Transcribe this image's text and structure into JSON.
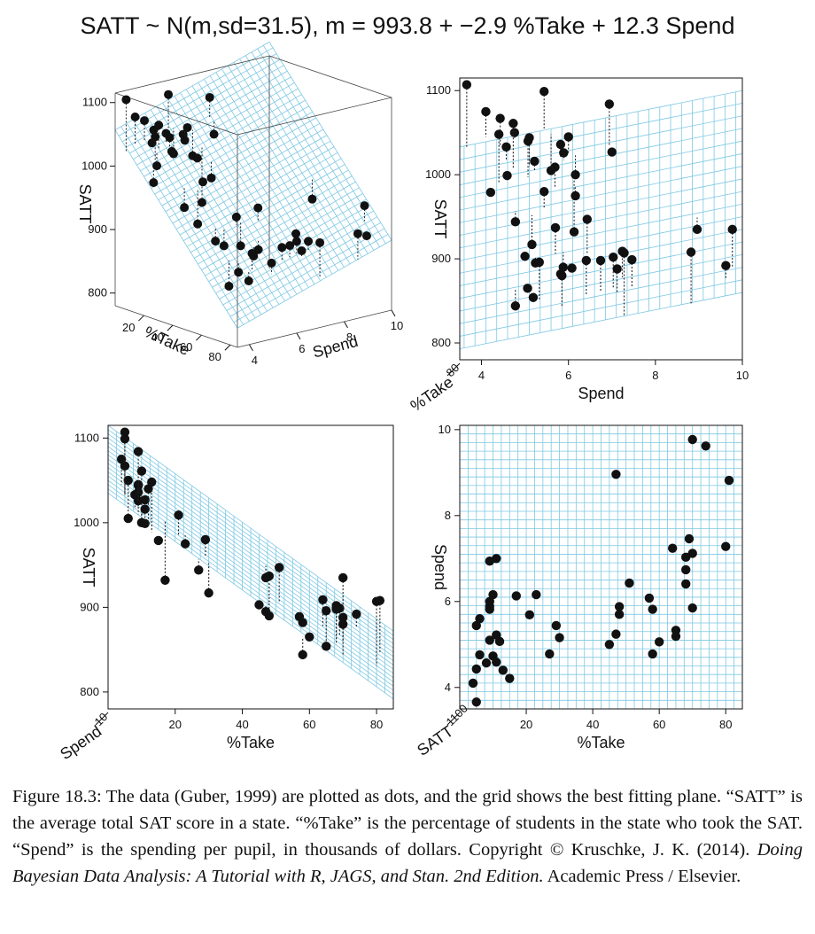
{
  "title": "SATT ~ N(m,sd=31.5), m = 993.8 + −2.9 %Take + 12.3 Spend",
  "colors": {
    "grid": "#7ec8e3",
    "points": "#111111",
    "residual": "#222222"
  },
  "chart_data": [
    {
      "type": "scatter",
      "panel": "3d-perspective",
      "axes": {
        "x": "%Take",
        "y": "Spend",
        "z": "SATT"
      },
      "x_ticks": [
        "20",
        "40",
        "60",
        "80"
      ],
      "y_ticks": [
        "4",
        "6",
        "8",
        "10"
      ],
      "z_ticks": [
        "800",
        "900",
        "1000",
        "1100"
      ],
      "surface": "regression plane (grid)"
    },
    {
      "type": "scatter",
      "panel": "SATT vs Spend",
      "xlabel": "Spend",
      "ylabel": "SATT",
      "corner_label": "%Take",
      "xlim": [
        3.5,
        10
      ],
      "ylim": [
        780,
        1115
      ],
      "x_ticks": [
        "4",
        "6",
        "8",
        "10"
      ],
      "y_ticks": [
        "800",
        "900",
        "1000",
        "1100"
      ],
      "corner_ticks": "80",
      "plane": {
        "intercept_at_left": 1033,
        "intercept_at_right": 893,
        "thickness": 140
      }
    },
    {
      "type": "scatter",
      "panel": "SATT vs %Take",
      "xlabel": "%Take",
      "ylabel": "SATT",
      "corner_label": "Spend",
      "xlim": [
        0,
        85
      ],
      "ylim": [
        780,
        1115
      ],
      "x_ticks": [
        "20",
        "40",
        "60",
        "80"
      ],
      "y_ticks": [
        "800",
        "900",
        "1000",
        "1100"
      ],
      "corner_ticks": "10"
    },
    {
      "type": "scatter",
      "panel": "Spend vs %Take",
      "xlabel": "%Take",
      "ylabel": "Spend",
      "corner_label": "SATT",
      "xlim": [
        0,
        85
      ],
      "ylim": [
        3.5,
        10.1
      ],
      "x_ticks": [
        "20",
        "40",
        "60",
        "80"
      ],
      "y_ticks": [
        "4",
        "6",
        "8",
        "10"
      ],
      "corner_ticks": "1100"
    }
  ],
  "points": [
    {
      "take": 4,
      "spend": 4.1,
      "satt": 1075,
      "fit": 1045
    },
    {
      "take": 5,
      "spend": 3.66,
      "satt": 1107,
      "fit": 1033
    },
    {
      "take": 5,
      "spend": 5.44,
      "satt": 1099,
      "fit": 1055
    },
    {
      "take": 6,
      "spend": 4.76,
      "satt": 1050,
      "fit": 1043
    },
    {
      "take": 5,
      "spend": 4.43,
      "satt": 1067,
      "fit": 1033
    },
    {
      "take": 6,
      "spend": 5.6,
      "satt": 1005,
      "fit": 1048
    },
    {
      "take": 8,
      "spend": 4.57,
      "satt": 1033,
      "fit": 1016
    },
    {
      "take": 9,
      "spend": 5.1,
      "satt": 1044,
      "fit": 1010
    },
    {
      "take": 9,
      "spend": 5.82,
      "satt": 1036,
      "fit": 1020
    },
    {
      "take": 9,
      "spend": 5.89,
      "satt": 1026,
      "fit": 1017
    },
    {
      "take": 9,
      "spend": 6.0,
      "satt": 1045,
      "fit": 1024
    },
    {
      "take": 9,
      "spend": 6.94,
      "satt": 1084,
      "fit": 1034
    },
    {
      "take": 10,
      "spend": 4.73,
      "satt": 1061,
      "fit": 1008
    },
    {
      "take": 10,
      "spend": 6.16,
      "satt": 1000,
      "fit": 1023
    },
    {
      "take": 11,
      "spend": 5.22,
      "satt": 1016,
      "fit": 1004
    },
    {
      "take": 11,
      "spend": 4.59,
      "satt": 999,
      "fit": 996
    },
    {
      "take": 11,
      "spend": 7.0,
      "satt": 1027,
      "fit": 1028
    },
    {
      "take": 12,
      "spend": 5.07,
      "satt": 1040,
      "fit": 997
    },
    {
      "take": 13,
      "spend": 4.4,
      "satt": 1048,
      "fit": 989
    },
    {
      "take": 15,
      "spend": 4.21,
      "satt": 979,
      "fit": 981
    },
    {
      "take": 17,
      "spend": 6.13,
      "satt": 932,
      "fit": 1002
    },
    {
      "take": 21,
      "spend": 5.69,
      "satt": 1009,
      "fit": 985
    },
    {
      "take": 23,
      "spend": 6.16,
      "satt": 975,
      "fit": 985
    },
    {
      "take": 27,
      "spend": 4.78,
      "satt": 944,
      "fit": 957
    },
    {
      "take": 29,
      "spend": 5.44,
      "satt": 980,
      "fit": 959
    },
    {
      "take": 30,
      "spend": 5.16,
      "satt": 917,
      "fit": 952
    },
    {
      "take": 45,
      "spend": 5.0,
      "satt": 903,
      "fit": 906
    },
    {
      "take": 47,
      "spend": 8.96,
      "satt": 935,
      "fit": 949
    },
    {
      "take": 47,
      "spend": 5.24,
      "satt": 895,
      "fit": 903
    },
    {
      "take": 48,
      "spend": 5.7,
      "satt": 937,
      "fit": 906
    },
    {
      "take": 48,
      "spend": 5.88,
      "satt": 890,
      "fit": 908
    },
    {
      "take": 51,
      "spend": 6.43,
      "satt": 947,
      "fit": 906
    },
    {
      "take": 57,
      "spend": 6.08,
      "satt": 889,
      "fit": 884
    },
    {
      "take": 58,
      "spend": 5.82,
      "satt": 882,
      "fit": 878
    },
    {
      "take": 58,
      "spend": 4.78,
      "satt": 844,
      "fit": 865
    },
    {
      "take": 60,
      "spend": 5.06,
      "satt": 865,
      "fit": 862
    },
    {
      "take": 64,
      "spend": 7.24,
      "satt": 909,
      "fit": 878
    },
    {
      "take": 65,
      "spend": 5.33,
      "satt": 896,
      "fit": 852
    },
    {
      "take": 65,
      "spend": 5.19,
      "satt": 854,
      "fit": 850
    },
    {
      "take": 68,
      "spend": 7.03,
      "satt": 902,
      "fit": 864
    },
    {
      "take": 68,
      "spend": 6.74,
      "satt": 898,
      "fit": 860
    },
    {
      "take": 68,
      "spend": 6.41,
      "satt": 898,
      "fit": 856
    },
    {
      "take": 69,
      "spend": 7.46,
      "satt": 899,
      "fit": 866
    },
    {
      "take": 70,
      "spend": 9.77,
      "satt": 935,
      "fit": 891
    },
    {
      "take": 70,
      "spend": 7.12,
      "satt": 888,
      "fit": 859
    },
    {
      "take": 70,
      "spend": 5.85,
      "satt": 880,
      "fit": 843
    },
    {
      "take": 74,
      "spend": 9.62,
      "satt": 892,
      "fit": 877
    },
    {
      "take": 80,
      "spend": 7.28,
      "satt": 907,
      "fit": 831
    },
    {
      "take": 81,
      "spend": 8.82,
      "satt": 908,
      "fit": 847
    }
  ],
  "caption": {
    "part1": "Figure 18.3: The data (Guber, 1999) are plotted as dots, and the grid shows the best fitting plane. “SATT” is the average total SAT score in a state. “%Take” is the percentage of students in the state who took the SAT. “Spend” is the spending per pupil, in thousands of dollars.   Copyright © Kruschke, J. K. (2014). ",
    "italic": "Doing Bayesian Data Analysis: A Tutorial with R, JAGS, and Stan. 2nd Edition.",
    "part2": " Academic Press / Elsevier."
  }
}
